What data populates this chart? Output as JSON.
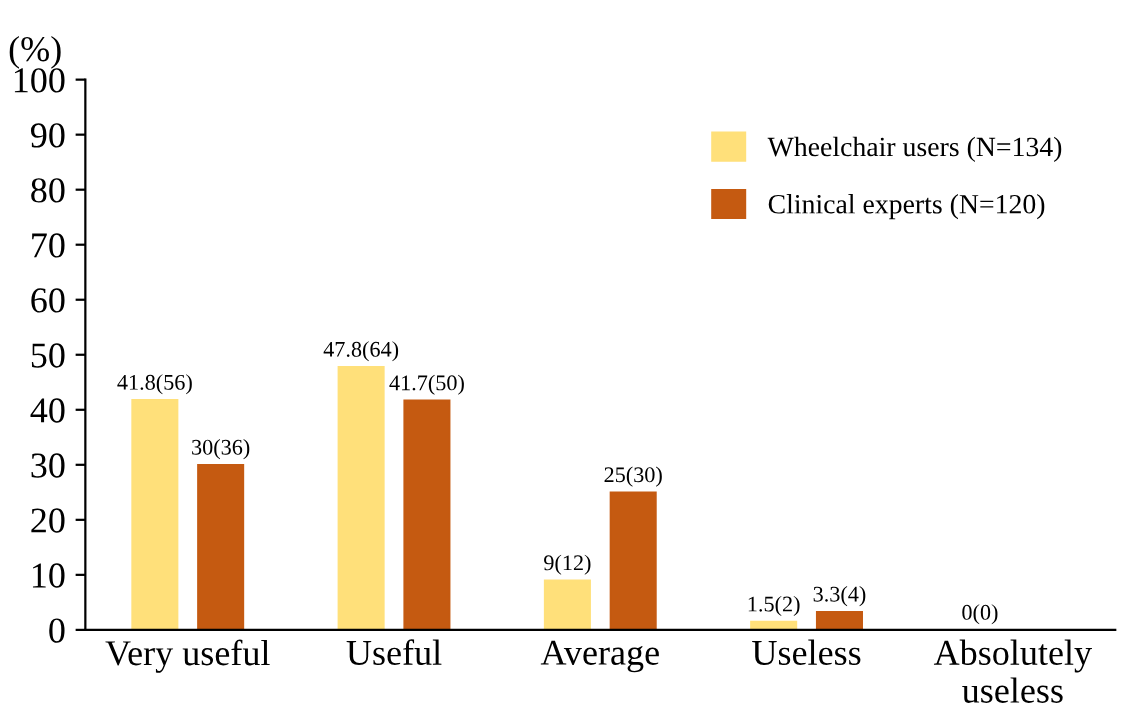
{
  "chart_data": {
    "type": "bar",
    "ylabel": "(%)",
    "categories": [
      "Very useful",
      "Useful",
      "Average",
      "Useless",
      "Absolutely\nuseless"
    ],
    "series": [
      {
        "name": "Wheelchair users (N=134)",
        "color": "#ffe07a",
        "values": [
          41.8,
          47.8,
          9,
          1.5,
          0
        ],
        "value_labels": [
          "41.8(56)",
          "47.8(64)",
          "9(12)",
          "1.5(2)",
          "0(0)"
        ]
      },
      {
        "name": "Clinical experts (N=120)",
        "color": "#c55a11",
        "values": [
          30,
          41.7,
          25,
          3.3,
          0
        ],
        "value_labels": [
          "30(36)",
          "41.7(50)",
          "25(30)",
          "3.3(4)",
          null
        ]
      }
    ],
    "ylim": [
      0,
      100
    ],
    "yticks": [
      0,
      10,
      20,
      30,
      40,
      50,
      60,
      70,
      80,
      90,
      100
    ],
    "grid": false,
    "legend": "top right"
  }
}
